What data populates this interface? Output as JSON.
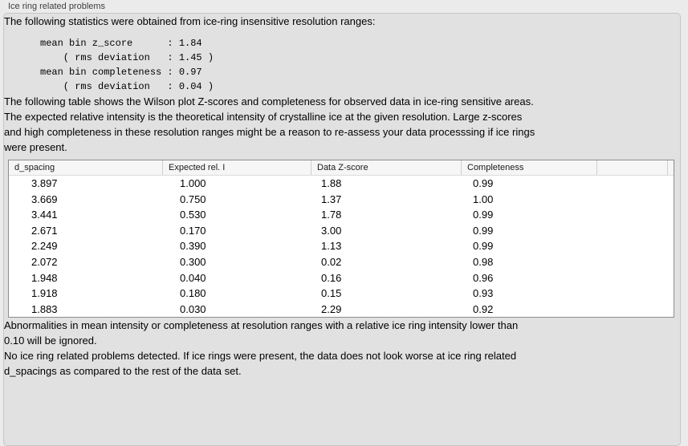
{
  "group": {
    "title": "Ice ring related problems"
  },
  "colors": {
    "page_bg": "#ebebeb",
    "box_bg": "#e1e1e1",
    "box_border": "#c6c6c6",
    "table_border": "#8c8c8c",
    "table_header_bg": "#f6f6f6",
    "table_header_separator": "#cfcfcf",
    "row_bg": "#ffffff",
    "text": "#000000"
  },
  "intro": "The following statistics were obtained from ice-ring insensitive resolution ranges:",
  "stats_block": "mean bin z_score      : 1.84\n    ( rms deviation   : 1.45 )\nmean bin completeness : 0.97\n    ( rms deviation   : 0.04 )",
  "table_description": "The following table shows the Wilson plot Z-scores and completeness for observed data in ice-ring sensitive areas.\nThe expected relative intensity is the theoretical intensity of crystalline ice at the given resolution. Large z-scores\nand high completeness in these resolution ranges might be a reason to re-assess your data processsing if ice rings\nwere present.",
  "table": {
    "headers": [
      "d_spacing",
      "Expected rel. I",
      "Data Z-score",
      "Completeness",
      ""
    ],
    "rows": [
      [
        "3.897",
        "1.000",
        "1.88",
        "0.99"
      ],
      [
        "3.669",
        "0.750",
        "1.37",
        "1.00"
      ],
      [
        "3.441",
        "0.530",
        "1.78",
        "0.99"
      ],
      [
        "2.671",
        "0.170",
        "3.00",
        "0.99"
      ],
      [
        "2.249",
        "0.390",
        "1.13",
        "0.99"
      ],
      [
        "2.072",
        "0.300",
        "0.02",
        "0.98"
      ],
      [
        "1.948",
        "0.040",
        "0.16",
        "0.96"
      ],
      [
        "1.918",
        "0.180",
        "0.15",
        "0.93"
      ],
      [
        "1.883",
        "0.030",
        "2.29",
        "0.92"
      ]
    ]
  },
  "notes": {
    "threshold": "Abnormalities in mean intensity or completeness at resolution ranges with a relative ice ring intensity lower than\n0.10 will be ignored.",
    "conclusion": "No ice ring related problems detected. If ice rings were present, the data does not look worse at ice ring related\nd_spacings as compared to the rest of the data set."
  }
}
